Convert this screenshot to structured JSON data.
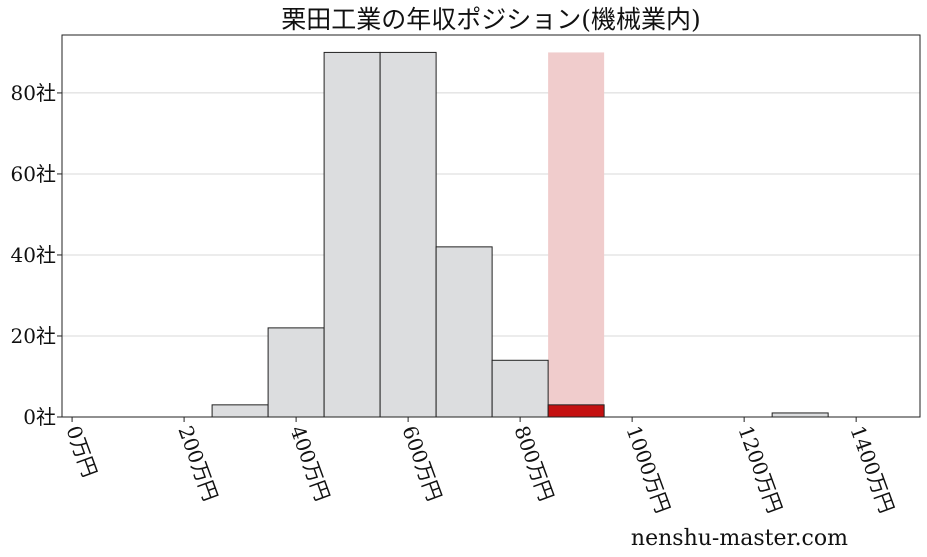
{
  "chart_data": {
    "type": "histogram",
    "title": "栗田工業の年収ポジション(機械業内)",
    "bins": [
      -50,
      50,
      150,
      250,
      350,
      450,
      550,
      650,
      750,
      850,
      950,
      1050,
      1150,
      1250,
      1350,
      1450
    ],
    "values": [
      0,
      0,
      0,
      3,
      22,
      90,
      90,
      42,
      14,
      3,
      0,
      0,
      0,
      1,
      0
    ],
    "color": "#dcdddf",
    "edge_color": "#222222",
    "highlight": {
      "x": 900,
      "color": "#c41010",
      "band_color": "#f0cccc"
    },
    "xlim": [
      -18,
      1514
    ],
    "ylim": [
      0,
      94.3
    ],
    "xticks": [
      {
        "value": 0,
        "label": "0万円"
      },
      {
        "value": 200,
        "label": "200万円"
      },
      {
        "value": 400,
        "label": "400万円"
      },
      {
        "value": 600,
        "label": "600万円"
      },
      {
        "value": 800,
        "label": "800万円"
      },
      {
        "value": 1000,
        "label": "1000万円"
      },
      {
        "value": 1200,
        "label": "1200万円"
      },
      {
        "value": 1400,
        "label": "1400万円"
      }
    ],
    "yticks": [
      {
        "value": 0,
        "label": "0社"
      },
      {
        "value": 20,
        "label": "20社"
      },
      {
        "value": 40,
        "label": "40社"
      },
      {
        "value": 60,
        "label": "60社"
      },
      {
        "value": 80,
        "label": "80社"
      }
    ],
    "grid": true,
    "watermark": "nenshu-master.com"
  }
}
